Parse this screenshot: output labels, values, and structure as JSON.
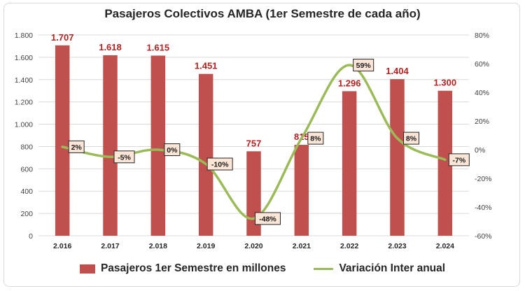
{
  "chart_data": {
    "type": "bar",
    "title": "Pasajeros Colectivos AMBA (1er Semestre de cada año)",
    "categories": [
      "2.016",
      "2.017",
      "2.018",
      "2.019",
      "2.020",
      "2.021",
      "2.022",
      "2.023",
      "2.024"
    ],
    "series": [
      {
        "name": "Pasajeros 1er Semestre en millones",
        "type": "bar",
        "axis": "left",
        "values": [
          1707,
          1618,
          1615,
          1451,
          757,
          815,
          1296,
          1404,
          1300
        ],
        "labels": [
          "1.707",
          "1.618",
          "1.615",
          "1.451",
          "757",
          "815",
          "1.296",
          "1.404",
          "1.300"
        ]
      },
      {
        "name": "Variación Inter anual",
        "type": "line",
        "axis": "right",
        "values": [
          2,
          -5,
          0,
          -10,
          -48,
          8,
          59,
          8,
          -7
        ],
        "labels": [
          "2%",
          "-5%",
          "0%",
          "-10%",
          "-48%",
          "8%",
          "59%",
          "8%",
          "-7%"
        ]
      }
    ],
    "y_left": {
      "range": [
        0,
        1800
      ],
      "ticks": [
        0,
        200,
        400,
        600,
        800,
        1000,
        1200,
        1400,
        1600,
        1800
      ],
      "tick_labels": [
        "0",
        "200",
        "400",
        "600",
        "800",
        "1.000",
        "1.200",
        "1.400",
        "1.600",
        "1.800"
      ]
    },
    "y_right": {
      "range": [
        -60,
        80
      ],
      "ticks": [
        -60,
        -40,
        -20,
        0,
        20,
        40,
        60,
        80
      ],
      "tick_labels": [
        "-60%",
        "-40%",
        "-20%",
        "0%",
        "20%",
        "40%",
        "60%",
        "80%"
      ]
    },
    "grid": true,
    "legend": "bottom",
    "colors": {
      "bar": "#c0504d",
      "line": "#9bbb59",
      "bar_label": "#b22222",
      "pct_label_bg": "#fbe5d6"
    }
  }
}
